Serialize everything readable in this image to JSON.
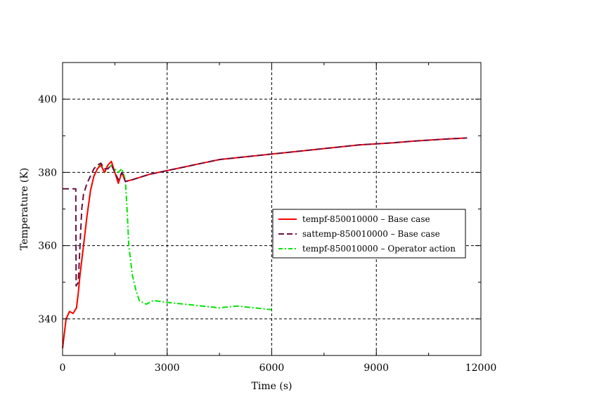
{
  "chart_data": {
    "type": "line",
    "title": "",
    "xlabel": "Time (s)",
    "ylabel": "Temperature (K)",
    "xlim": [
      0,
      12000
    ],
    "ylim": [
      330,
      410
    ],
    "xticks": [
      0,
      3000,
      6000,
      9000,
      12000
    ],
    "yticks": [
      340,
      360,
      380,
      400
    ],
    "grid": true,
    "legend_position": "right-middle",
    "series": [
      {
        "name": "tempf-850010000 – Base case",
        "color": "#ff0000",
        "style": "solid",
        "points": [
          [
            0,
            332
          ],
          [
            100,
            340
          ],
          [
            200,
            342
          ],
          [
            300,
            341.5
          ],
          [
            400,
            343
          ],
          [
            450,
            347
          ],
          [
            500,
            352
          ],
          [
            600,
            360
          ],
          [
            700,
            368
          ],
          [
            800,
            375
          ],
          [
            900,
            379
          ],
          [
            1000,
            381
          ],
          [
            1100,
            382
          ],
          [
            1200,
            380
          ],
          [
            1300,
            382
          ],
          [
            1400,
            383
          ],
          [
            1500,
            380
          ],
          [
            1600,
            377
          ],
          [
            1700,
            380
          ],
          [
            1800,
            377.5
          ],
          [
            2000,
            378
          ],
          [
            2500,
            379.5
          ],
          [
            3000,
            380.5
          ],
          [
            3500,
            381.5
          ],
          [
            4000,
            382.5
          ],
          [
            4500,
            383.5
          ],
          [
            5000,
            384
          ],
          [
            5500,
            384.5
          ],
          [
            6000,
            385
          ],
          [
            6500,
            385.5
          ],
          [
            7000,
            386
          ],
          [
            7500,
            386.5
          ],
          [
            8000,
            387
          ],
          [
            8500,
            387.5
          ],
          [
            9000,
            387.8
          ],
          [
            9500,
            388.1
          ],
          [
            10000,
            388.5
          ],
          [
            10500,
            388.8
          ],
          [
            11000,
            389.1
          ],
          [
            11600,
            389.4
          ]
        ]
      },
      {
        "name": "sattemp-850010000 – Base case",
        "color": "#6a1040",
        "style": "dashed",
        "points": [
          [
            0,
            375.5
          ],
          [
            200,
            375.5
          ],
          [
            380,
            375.5
          ],
          [
            390,
            349
          ],
          [
            450,
            350
          ],
          [
            500,
            360
          ],
          [
            550,
            370
          ],
          [
            600,
            374
          ],
          [
            700,
            377
          ],
          [
            800,
            379
          ],
          [
            900,
            381
          ],
          [
            1000,
            382
          ],
          [
            1100,
            382.5
          ],
          [
            1200,
            381
          ],
          [
            1300,
            381
          ],
          [
            1400,
            382
          ],
          [
            1500,
            380
          ],
          [
            1600,
            378
          ],
          [
            1700,
            380
          ],
          [
            1800,
            377.5
          ],
          [
            2000,
            378
          ],
          [
            2500,
            379.5
          ],
          [
            3000,
            380.5
          ],
          [
            3500,
            381.5
          ],
          [
            4000,
            382.5
          ],
          [
            4500,
            383.5
          ],
          [
            5000,
            384
          ],
          [
            5500,
            384.5
          ],
          [
            6000,
            385
          ],
          [
            6500,
            385.5
          ],
          [
            7000,
            386
          ],
          [
            7500,
            386.5
          ],
          [
            8000,
            387
          ],
          [
            8500,
            387.5
          ],
          [
            9000,
            387.8
          ],
          [
            9500,
            388.1
          ],
          [
            10000,
            388.5
          ],
          [
            10500,
            388.8
          ],
          [
            11000,
            389.1
          ],
          [
            11600,
            389.4
          ]
        ]
      },
      {
        "name": "tempf-850010000 – Operator action",
        "color": "#00e400",
        "style": "dashdot",
        "points": [
          [
            0,
            332
          ],
          [
            100,
            340
          ],
          [
            200,
            342
          ],
          [
            300,
            341.5
          ],
          [
            400,
            343
          ],
          [
            450,
            347
          ],
          [
            500,
            352
          ],
          [
            600,
            360
          ],
          [
            700,
            368
          ],
          [
            800,
            375
          ],
          [
            900,
            379
          ],
          [
            1000,
            381
          ],
          [
            1100,
            382.5
          ],
          [
            1200,
            380
          ],
          [
            1300,
            381
          ],
          [
            1400,
            382
          ],
          [
            1500,
            381
          ],
          [
            1600,
            380
          ],
          [
            1700,
            381
          ],
          [
            1800,
            378
          ],
          [
            1850,
            370
          ],
          [
            1900,
            360
          ],
          [
            2000,
            352
          ],
          [
            2100,
            348
          ],
          [
            2200,
            345
          ],
          [
            2400,
            344
          ],
          [
            2600,
            345
          ],
          [
            3000,
            344.5
          ],
          [
            3500,
            344
          ],
          [
            4000,
            343.5
          ],
          [
            4500,
            343
          ],
          [
            5000,
            343.5
          ],
          [
            5500,
            343
          ],
          [
            6000,
            342.5
          ]
        ]
      }
    ]
  }
}
